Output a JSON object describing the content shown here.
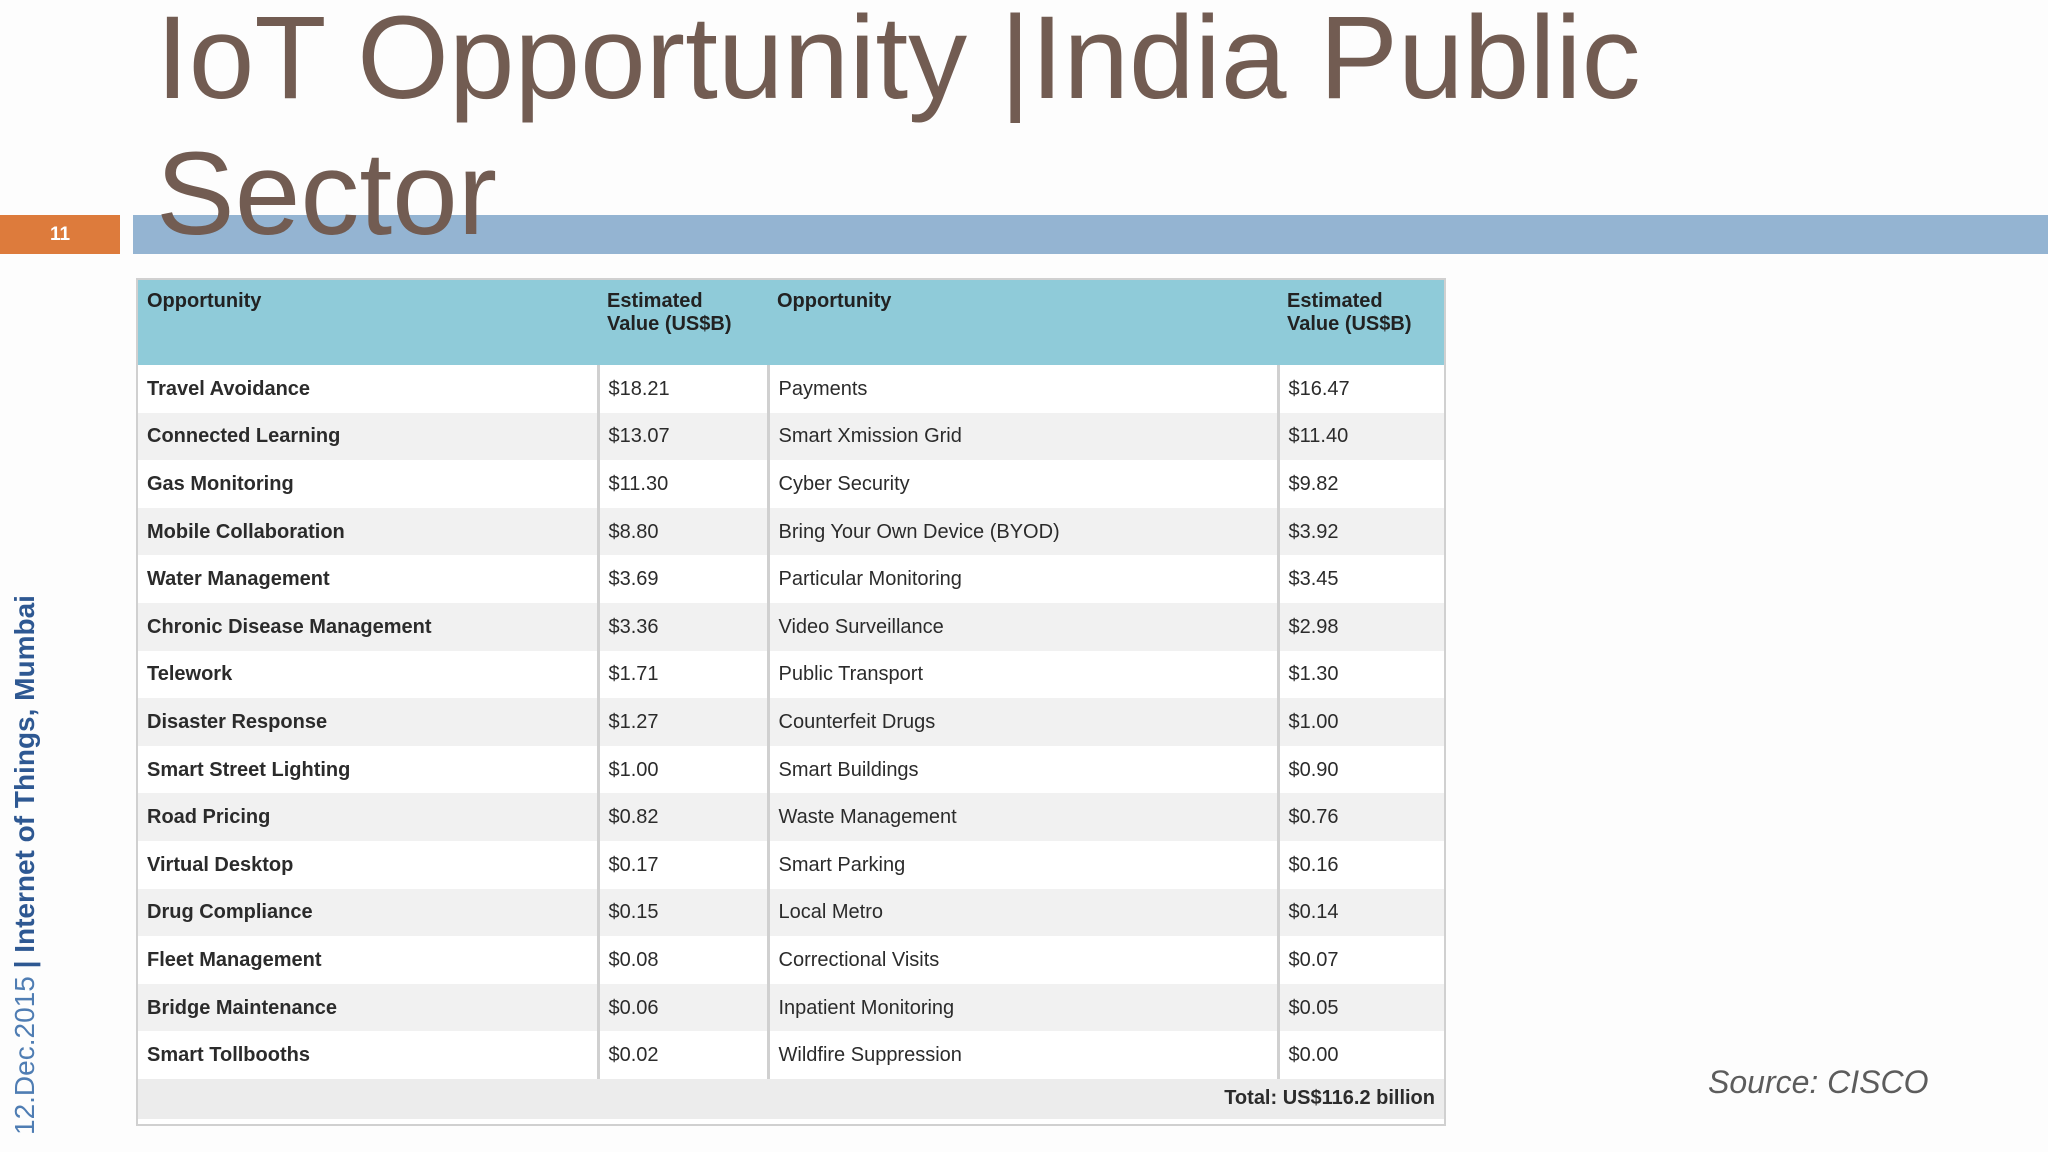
{
  "slide": {
    "title": "IoT Opportunity |India Public Sector",
    "number": "11",
    "side_date": "12.Dec.2015 ",
    "side_event": "| Internet of Things, Mumbai",
    "source": "Source: CISCO"
  },
  "table": {
    "headers": [
      "Opportunity",
      "Estimated Value (US$B)",
      "Opportunity",
      "Estimated Value (US$B)"
    ],
    "rows": [
      [
        "Travel Avoidance",
        "$18.21",
        "Payments",
        "$16.47"
      ],
      [
        "Connected Learning",
        "$13.07",
        "Smart Xmission Grid",
        "$11.40"
      ],
      [
        "Gas Monitoring",
        "$11.30",
        "Cyber Security",
        "$9.82"
      ],
      [
        "Mobile Collaboration",
        "$8.80",
        "Bring Your Own Device (BYOD)",
        "$3.92"
      ],
      [
        "Water Management",
        "$3.69",
        "Particular Monitoring",
        "$3.45"
      ],
      [
        "Chronic Disease Management",
        "$3.36",
        "Video Surveillance",
        "$2.98"
      ],
      [
        "Telework",
        "$1.71",
        "Public Transport",
        "$1.30"
      ],
      [
        "Disaster Response",
        "$1.27",
        "Counterfeit Drugs",
        "$1.00"
      ],
      [
        "Smart Street Lighting",
        "$1.00",
        "Smart Buildings",
        "$0.90"
      ],
      [
        "Road Pricing",
        "$0.82",
        "Waste Management",
        "$0.76"
      ],
      [
        "Virtual Desktop",
        "$0.17",
        "Smart Parking",
        "$0.16"
      ],
      [
        "Drug Compliance",
        "$0.15",
        "Local Metro",
        "$0.14"
      ],
      [
        "Fleet Management",
        "$0.08",
        "Correctional Visits",
        "$0.07"
      ],
      [
        "Bridge Maintenance",
        "$0.06",
        "Inpatient Monitoring",
        "$0.05"
      ],
      [
        "Smart Tollbooths",
        "$0.02",
        "Wildfire Suppression",
        "$0.00"
      ]
    ],
    "total": "Total: US$116.2 billion"
  },
  "colors": {
    "title": "#725c52",
    "slide_number_box": "#dd7b3c",
    "title_bar": "#94b4d2",
    "table_header": "#8fcbd9"
  }
}
